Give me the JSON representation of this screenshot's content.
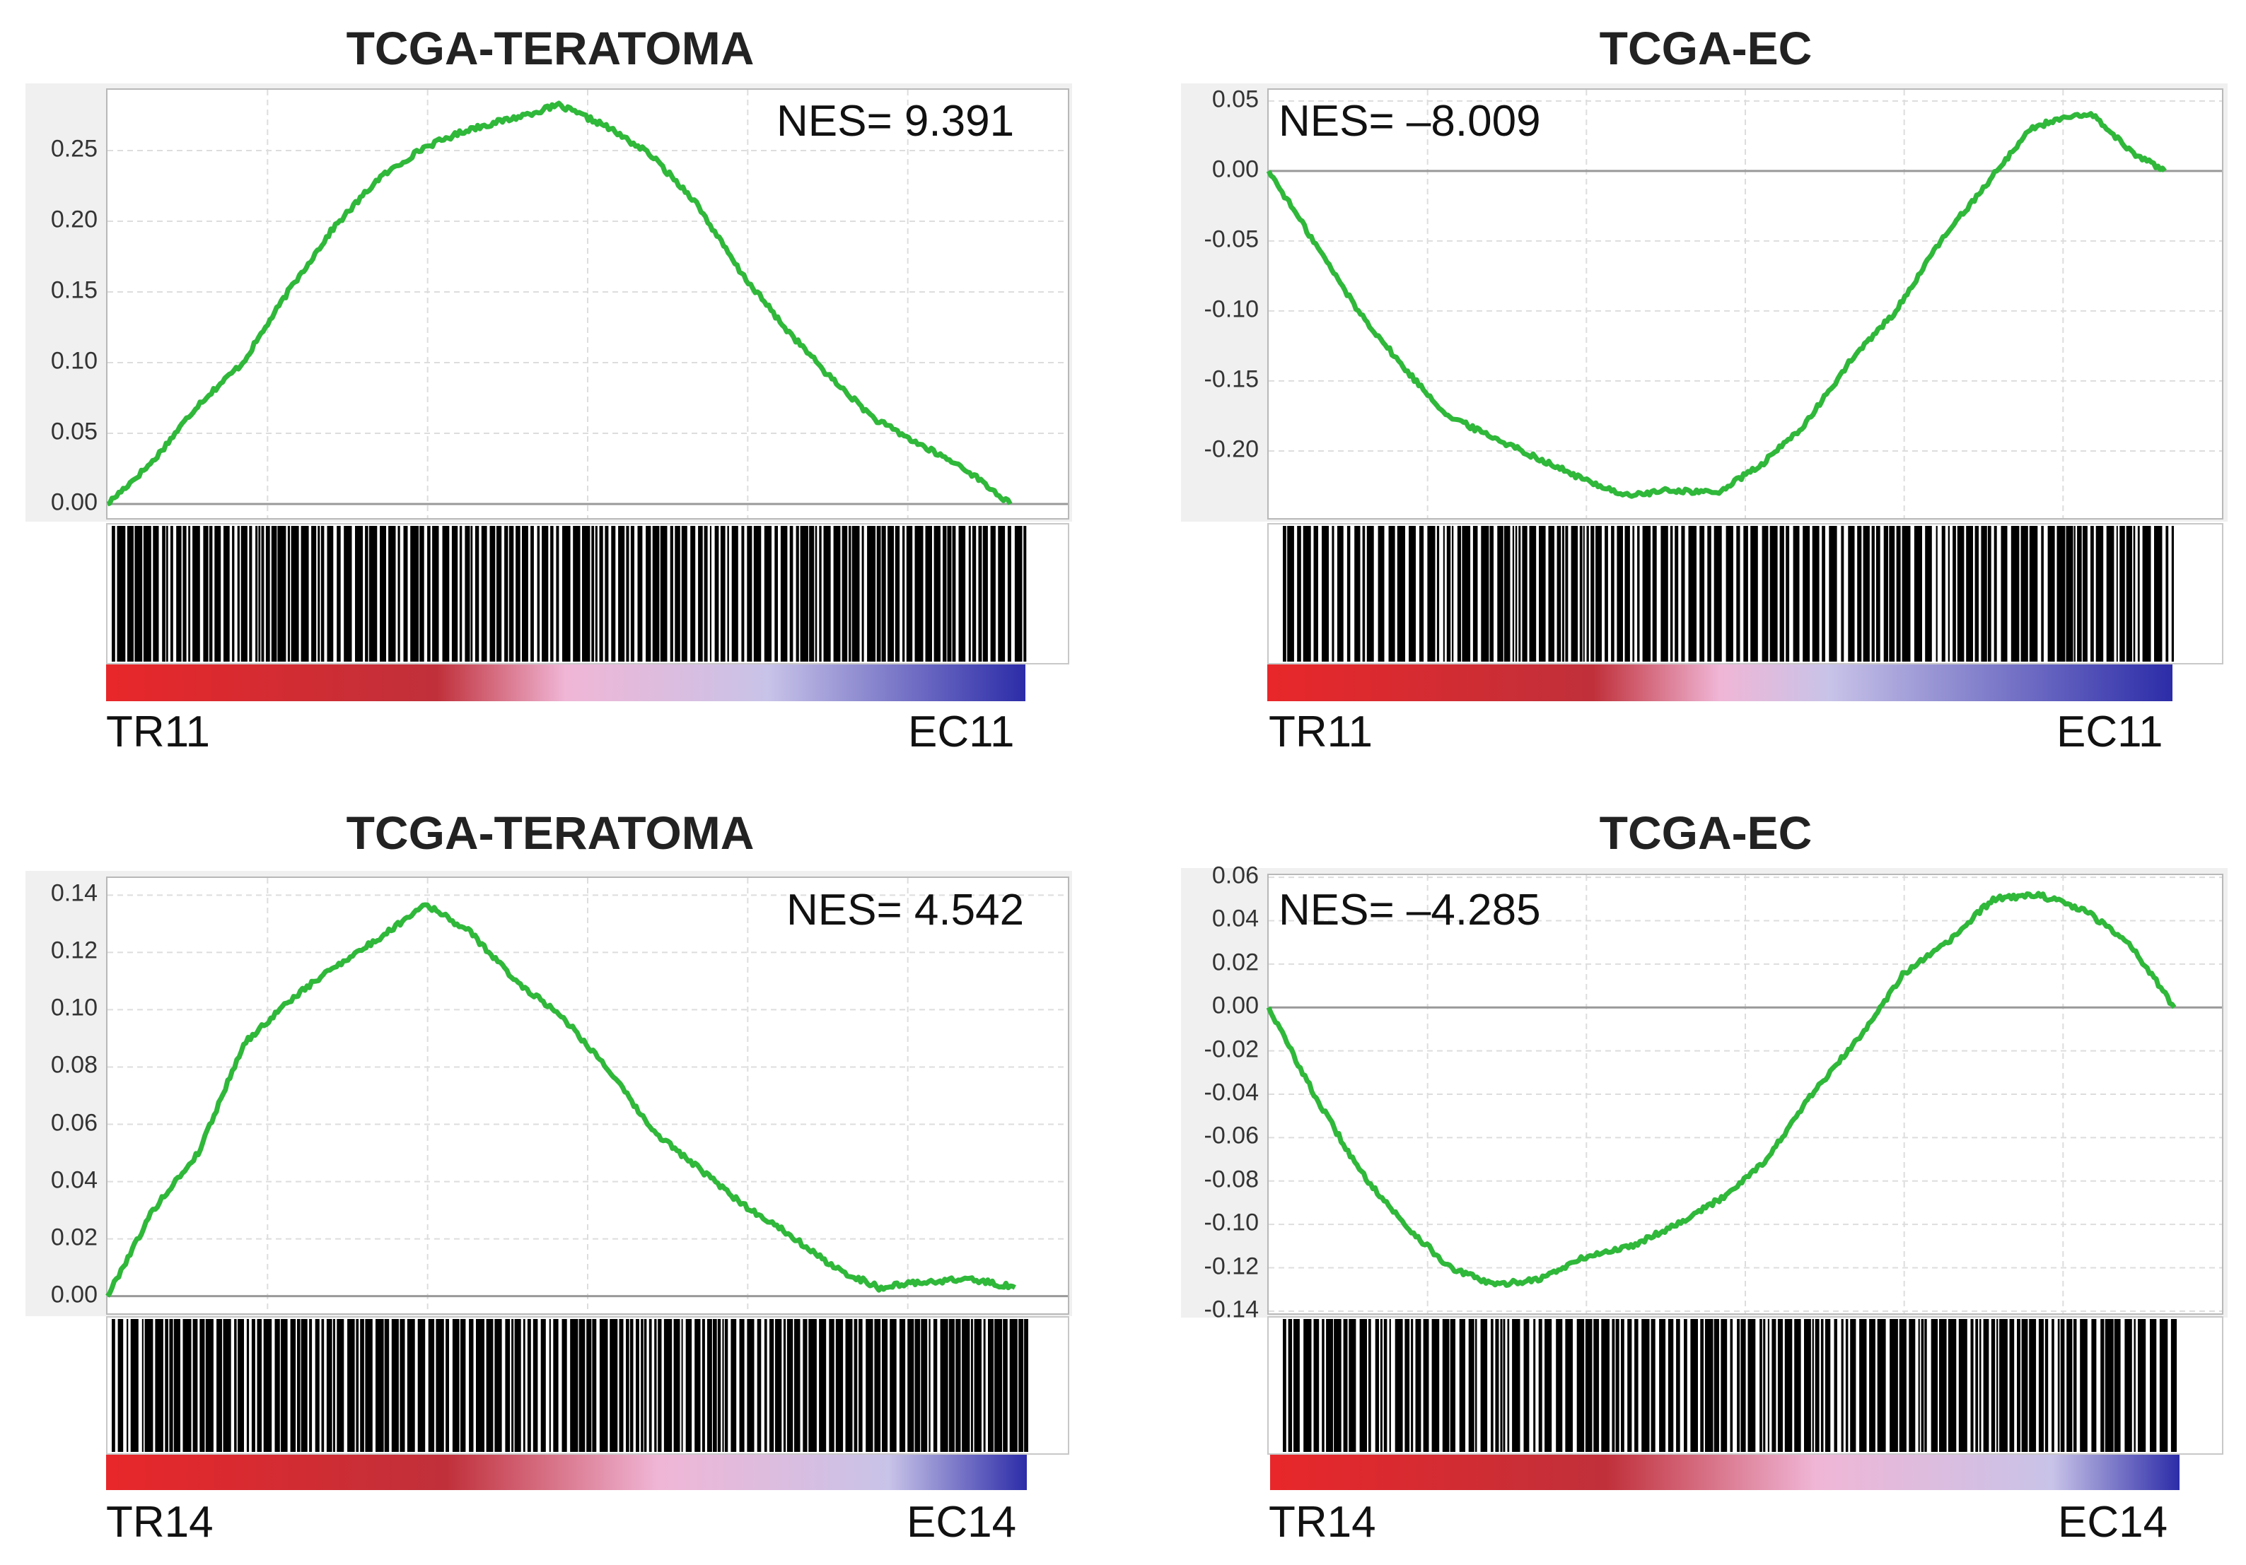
{
  "colors": {
    "curve": "#2fb83a",
    "hit_line": "#000000",
    "zero_line": "#999999",
    "grid": "#dddddd",
    "gradient_red": "#e8272a",
    "gradient_pink": "#f0b6d6",
    "gradient_lavender": "#c8c3e8",
    "gradient_blue": "#2c2ca8"
  },
  "chart_data": [
    {
      "type": "line",
      "title": "TCGA-TERATOMA",
      "annotation": "NES= 9.391",
      "left_label": "TR11",
      "right_label": "EC11",
      "yticks": [
        "0.00",
        "0.05",
        "0.10",
        "0.15",
        "0.20",
        "0.25"
      ],
      "ylim": [
        -0.01,
        0.293
      ],
      "xlim": [
        0,
        1
      ],
      "x": [
        0,
        0.05,
        0.1,
        0.15,
        0.2,
        0.25,
        0.3,
        0.35,
        0.4,
        0.45,
        0.5,
        0.55,
        0.6,
        0.65,
        0.7,
        0.75,
        0.8,
        0.85,
        0.9,
        0.95,
        1.0
      ],
      "values": [
        0.0,
        0.03,
        0.07,
        0.1,
        0.15,
        0.195,
        0.23,
        0.252,
        0.265,
        0.273,
        0.282,
        0.268,
        0.248,
        0.215,
        0.165,
        0.125,
        0.09,
        0.06,
        0.042,
        0.025,
        0.0
      ],
      "grid": true
    },
    {
      "type": "line",
      "title": "TCGA-EC",
      "annotation": "NES= –8.009",
      "left_label": "TR11",
      "right_label": "EC11",
      "yticks": [
        "-0.20",
        "-0.15",
        "-0.10",
        "-0.05",
        "0.00",
        "0.05"
      ],
      "ylim": [
        -0.248,
        0.058
      ],
      "xlim": [
        0,
        1
      ],
      "x": [
        0,
        0.05,
        0.1,
        0.15,
        0.2,
        0.25,
        0.3,
        0.35,
        0.4,
        0.45,
        0.5,
        0.55,
        0.6,
        0.65,
        0.7,
        0.75,
        0.8,
        0.85,
        0.88,
        0.92,
        0.96,
        1.0
      ],
      "values": [
        0.0,
        -0.05,
        -0.1,
        -0.14,
        -0.175,
        -0.19,
        -0.205,
        -0.22,
        -0.232,
        -0.228,
        -0.23,
        -0.21,
        -0.18,
        -0.135,
        -0.1,
        -0.05,
        -0.01,
        0.03,
        0.037,
        0.04,
        0.015,
        0.0
      ],
      "grid": true
    },
    {
      "type": "line",
      "title": "TCGA-TERATOMA",
      "annotation": "NES= 4.542",
      "left_label": "TR14",
      "right_label": "EC14",
      "yticks": [
        "0.00",
        "0.02",
        "0.04",
        "0.06",
        "0.08",
        "0.10",
        "0.12",
        "0.14"
      ],
      "ylim": [
        -0.006,
        0.146
      ],
      "xlim": [
        0,
        1
      ],
      "x": [
        0,
        0.05,
        0.1,
        0.15,
        0.2,
        0.25,
        0.3,
        0.35,
        0.4,
        0.45,
        0.5,
        0.55,
        0.6,
        0.65,
        0.7,
        0.75,
        0.8,
        0.85,
        0.9,
        0.95,
        1.0
      ],
      "values": [
        0.0,
        0.03,
        0.05,
        0.088,
        0.103,
        0.115,
        0.125,
        0.137,
        0.127,
        0.11,
        0.098,
        0.08,
        0.058,
        0.045,
        0.032,
        0.022,
        0.01,
        0.003,
        0.005,
        0.006,
        0.003
      ],
      "grid": true
    },
    {
      "type": "line",
      "title": "TCGA-EC",
      "annotation": "NES= –4.285",
      "left_label": "TR14",
      "right_label": "EC14",
      "yticks": [
        "-0.14",
        "-0.12",
        "-0.10",
        "-0.08",
        "-0.06",
        "-0.04",
        "-0.02",
        "0.00",
        "0.02",
        "0.04",
        "0.06"
      ],
      "ylim": [
        -0.141,
        0.061
      ],
      "xlim": [
        0,
        1
      ],
      "x": [
        0,
        0.05,
        0.1,
        0.15,
        0.2,
        0.25,
        0.3,
        0.35,
        0.4,
        0.45,
        0.5,
        0.55,
        0.6,
        0.65,
        0.7,
        0.75,
        0.8,
        0.85,
        0.9,
        0.95,
        1.0
      ],
      "values": [
        0.0,
        -0.04,
        -0.075,
        -0.1,
        -0.12,
        -0.128,
        -0.125,
        -0.115,
        -0.11,
        -0.1,
        -0.088,
        -0.07,
        -0.04,
        -0.015,
        0.015,
        0.03,
        0.05,
        0.052,
        0.045,
        0.03,
        0.0
      ],
      "grid": true
    }
  ]
}
